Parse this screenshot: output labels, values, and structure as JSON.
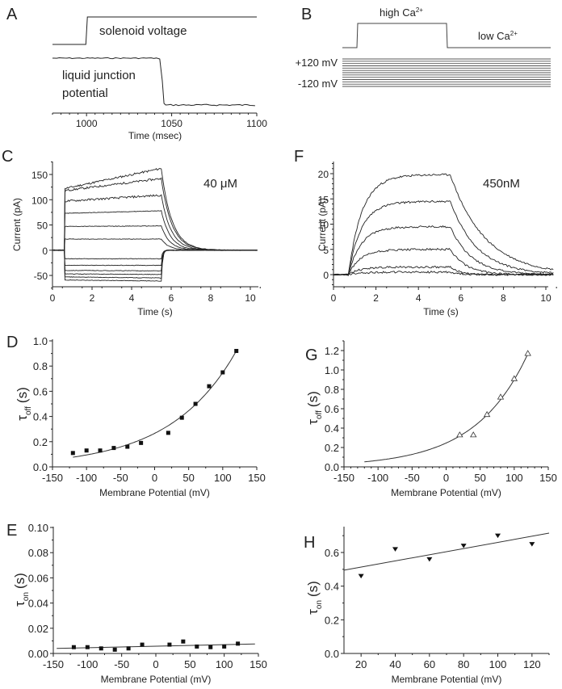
{
  "figure": {
    "panel_letters": [
      "A",
      "B",
      "C",
      "D",
      "E",
      "F",
      "G",
      "H"
    ]
  },
  "chart_data": [
    {
      "panel": "A",
      "type": "line",
      "title": "",
      "xlabel": "Time (msec)",
      "ylabel": "",
      "xlim": [
        980,
        1100
      ],
      "xticks": [
        1000,
        1050,
        1100
      ],
      "annotations": [
        "solenoid voltage",
        "liquid junction potential"
      ],
      "series": [
        {
          "name": "solenoid voltage",
          "x": [
            980,
            999,
            1000,
            1100
          ],
          "y": [
            0,
            0,
            1,
            1
          ]
        },
        {
          "name": "liquid junction potential",
          "x": [
            980,
            1042,
            1043,
            1045,
            1046,
            1100
          ],
          "y": [
            1,
            1,
            0.9,
            0.1,
            0,
            0
          ]
        }
      ]
    },
    {
      "panel": "B",
      "type": "line",
      "title": "",
      "annotations": [
        "high Ca2+",
        "low Ca2+",
        "+120 mV",
        "-120 mV"
      ],
      "labels": {
        "high": "high Ca",
        "low": "low Ca",
        "sup": "2+",
        "vmax": "+120 mV",
        "vmin": "-120 mV"
      },
      "voltage_steps_mV": [
        120,
        100,
        80,
        60,
        40,
        20,
        0,
        -20,
        -40,
        -60,
        -80,
        -100,
        -120
      ]
    },
    {
      "panel": "C",
      "type": "line",
      "title": "40 μM",
      "xlabel": "Time (s)",
      "ylabel": "Current (pA)",
      "xlim": [
        0,
        10.5
      ],
      "ylim": [
        -75,
        175
      ],
      "xticks": [
        0,
        2,
        4,
        6,
        8,
        10
      ],
      "yticks": [
        -50,
        0,
        50,
        100,
        150
      ],
      "pulse_on_s": 0.6,
      "pulse_off_s": 5.5,
      "series_steady_pA": [
        {
          "start": 122,
          "end": 162
        },
        {
          "start": 118,
          "end": 142
        },
        {
          "start": 97,
          "end": 109
        },
        {
          "start": 73,
          "end": 78
        },
        {
          "start": 47,
          "end": 48
        },
        {
          "start": 22,
          "end": 22
        },
        {
          "start": -17,
          "end": -17
        },
        {
          "start": -30,
          "end": -30
        },
        {
          "start": -40,
          "end": -41
        },
        {
          "start": -47,
          "end": -48
        },
        {
          "start": -53,
          "end": -55
        },
        {
          "start": -59,
          "end": -61
        }
      ]
    },
    {
      "panel": "F",
      "type": "line",
      "title": "450nM",
      "xlabel": "Time (s)",
      "ylabel": "Current (pA)",
      "xlim": [
        0,
        10.5
      ],
      "ylim": [
        -2.5,
        22
      ],
      "xticks": [
        0,
        2,
        4,
        6,
        8,
        10
      ],
      "yticks": [
        0,
        5,
        10,
        15,
        20
      ],
      "pulse_on_s": 0.7,
      "pulse_off_s": 5.5,
      "series": [
        {
          "plateau": 19.8,
          "tau_on": 0.65,
          "tau_off": 1.17
        },
        {
          "plateau": 14.5,
          "tau_on": 0.64,
          "tau_off": 0.91
        },
        {
          "plateau": 9.5,
          "tau_on": 0.7,
          "tau_off": 0.72
        },
        {
          "plateau": 5.0,
          "tau_on": 0.56,
          "tau_off": 0.54
        },
        {
          "plateau": 1.5,
          "tau_on": 0.62,
          "tau_off": 0.33
        },
        {
          "plateau": 0.5,
          "tau_on": 0.46,
          "tau_off": 0.33
        }
      ]
    },
    {
      "panel": "D",
      "type": "scatter",
      "title": "",
      "xlabel": "Membrane Potential (mV)",
      "ylabel": "τoff (s)",
      "ylabel_main": "τ",
      "ylabel_sub": "off",
      "ylabel_unit": "(s)",
      "xlim": [
        -150,
        150
      ],
      "ylim": [
        0.0,
        1.0
      ],
      "xticks": [
        -150,
        -100,
        -50,
        0,
        50,
        100,
        150
      ],
      "yticks": [
        0.0,
        0.2,
        0.4,
        0.6,
        0.8,
        1.0
      ],
      "marker": "square",
      "x": [
        -120,
        -100,
        -80,
        -60,
        -40,
        -20,
        20,
        40,
        60,
        80,
        100,
        120
      ],
      "y": [
        0.11,
        0.13,
        0.13,
        0.15,
        0.16,
        0.19,
        0.27,
        0.39,
        0.5,
        0.64,
        0.75,
        0.92
      ],
      "fit": {
        "type": "exponential",
        "x_range": [
          -120,
          120
        ],
        "a": 0.266,
        "k": 0.01034
      }
    },
    {
      "panel": "G",
      "type": "scatter",
      "title": "",
      "xlabel": "Membrane Potential (mV)",
      "ylabel": "τoff (s)",
      "ylabel_main": "τ",
      "ylabel_sub": "off",
      "ylabel_unit": "(s)",
      "xlim": [
        -150,
        150
      ],
      "ylim": [
        0.0,
        1.3
      ],
      "xticks": [
        -150,
        -100,
        -50,
        0,
        50,
        100,
        150
      ],
      "yticks": [
        0.0,
        0.2,
        0.4,
        0.6,
        0.8,
        1.0,
        1.2
      ],
      "marker": "open-triangle",
      "x": [
        20,
        40,
        60,
        80,
        100,
        120
      ],
      "y": [
        0.33,
        0.33,
        0.54,
        0.72,
        0.91,
        1.17
      ],
      "fit": {
        "type": "exponential",
        "x_range": [
          -120,
          120
        ],
        "a": 0.246,
        "k": 0.01297
      }
    },
    {
      "panel": "E",
      "type": "scatter",
      "title": "",
      "xlabel": "Membrane Potential (mV)",
      "ylabel": "τon (s)",
      "ylabel_main": "τ",
      "ylabel_sub": "on",
      "ylabel_unit": "(s)",
      "xlim": [
        -150,
        150
      ],
      "ylim": [
        0.0,
        0.1
      ],
      "xticks": [
        -150,
        -100,
        -50,
        0,
        50,
        100,
        150
      ],
      "yticks": [
        0.0,
        0.02,
        0.04,
        0.06,
        0.08,
        0.1
      ],
      "ytick_labels": [
        "0.00",
        "0.02",
        "0.04",
        "0.06",
        "0.08",
        "0.10"
      ],
      "marker": "square",
      "x": [
        -120,
        -100,
        -80,
        -60,
        -40,
        -20,
        20,
        40,
        60,
        80,
        100,
        120
      ],
      "y": [
        0.005,
        0.005,
        0.004,
        0.003,
        0.004,
        0.007,
        0.007,
        0.0095,
        0.0055,
        0.005,
        0.0055,
        0.0078
      ],
      "fit": {
        "type": "linear",
        "x_range": [
          -145,
          145
        ],
        "y_range": [
          0.004,
          0.0075
        ]
      }
    },
    {
      "panel": "H",
      "type": "scatter",
      "title": "",
      "xlabel": "Membrane Potential (mV)",
      "ylabel": "τon (s)",
      "ylabel_main": "τ",
      "ylabel_sub": "on",
      "ylabel_unit": "(s)",
      "xlim": [
        10,
        130
      ],
      "ylim": [
        0.0,
        0.75
      ],
      "xticks": [
        20,
        40,
        60,
        80,
        100,
        120
      ],
      "yticks": [
        0.0,
        0.2,
        0.4,
        0.6
      ],
      "marker": "filled-down-triangle",
      "x": [
        20,
        40,
        60,
        80,
        100,
        120
      ],
      "y": [
        0.46,
        0.62,
        0.56,
        0.64,
        0.7,
        0.65
      ],
      "fit": {
        "type": "linear",
        "x_range": [
          10,
          130
        ],
        "y_range": [
          0.495,
          0.715
        ]
      }
    }
  ]
}
